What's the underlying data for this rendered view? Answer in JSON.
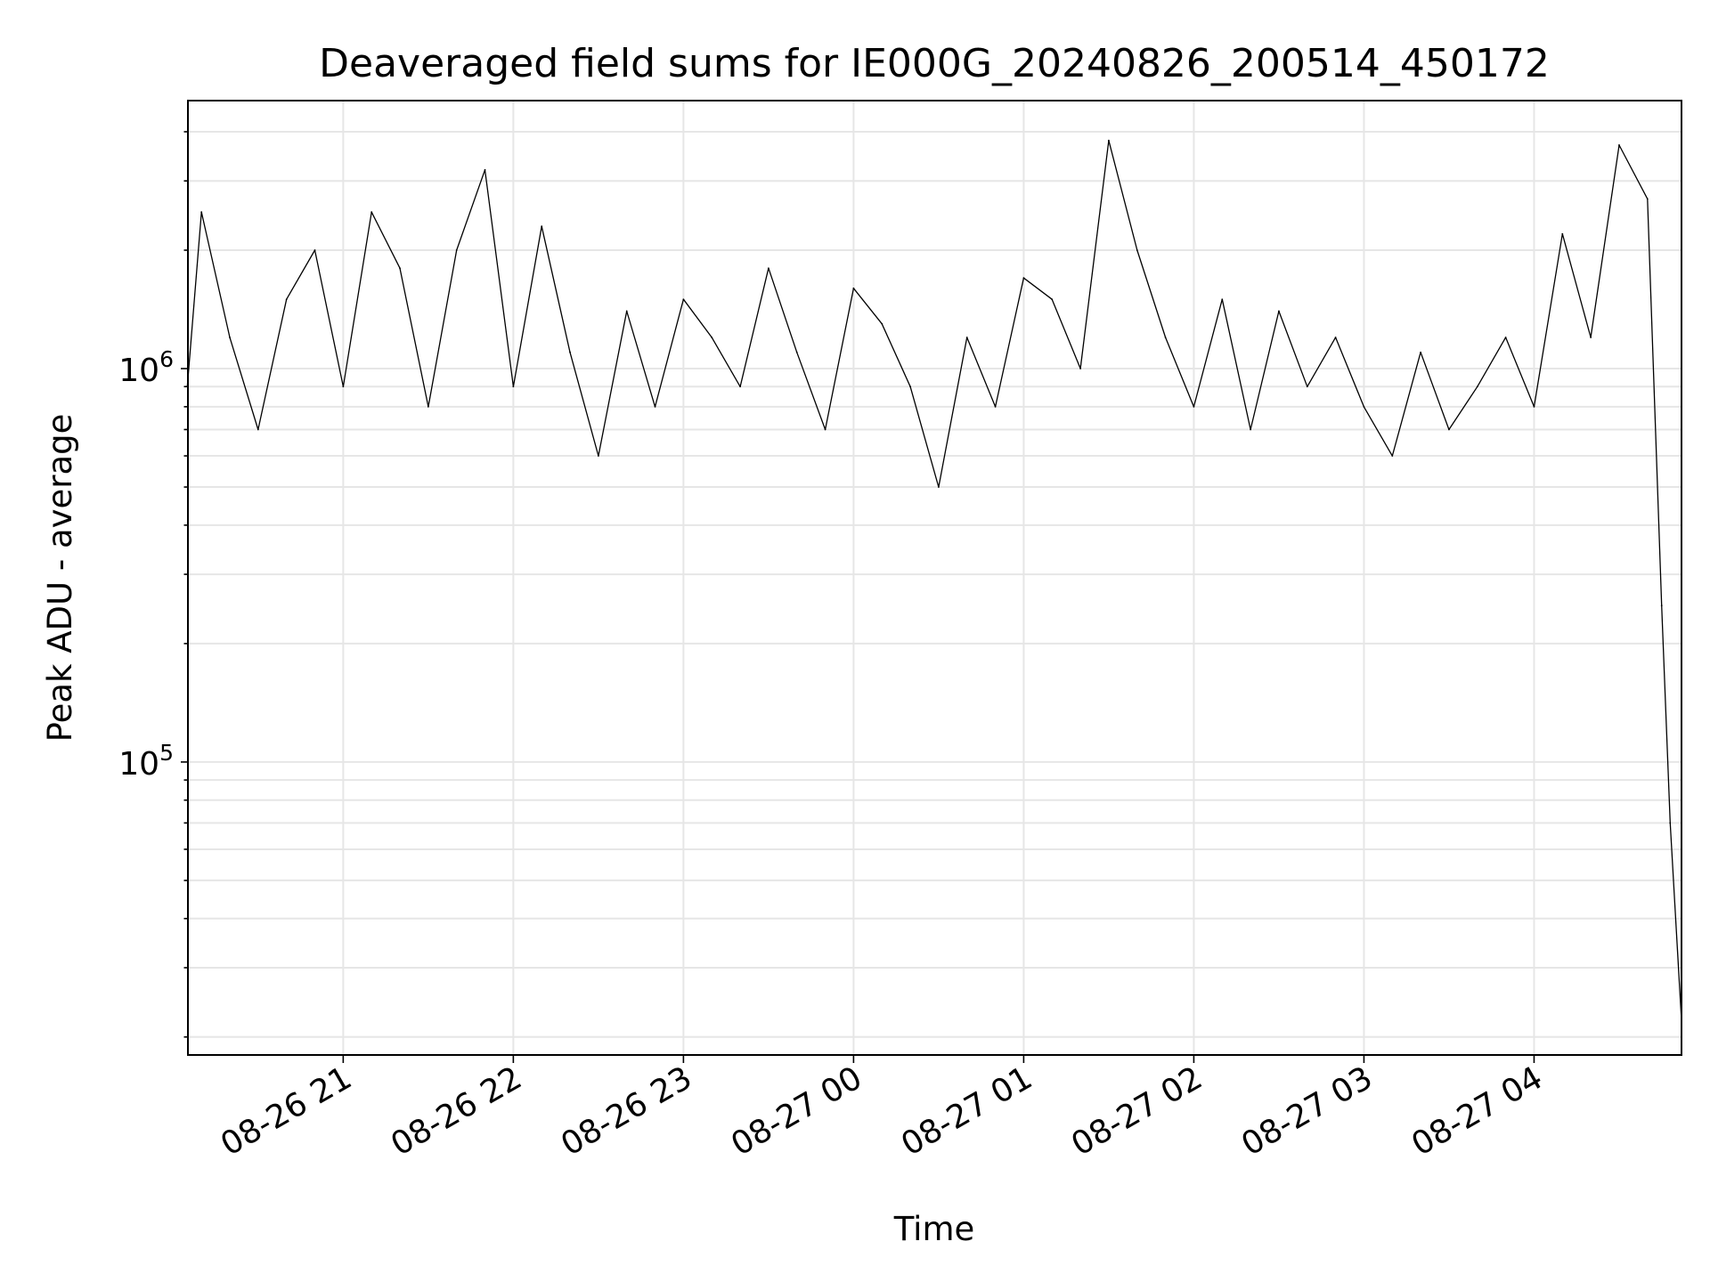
{
  "chart_data": {
    "type": "line",
    "title": "Deaveraged field sums for IE000G_20240826_200514_450172",
    "xlabel": "Time",
    "ylabel": "Peak ADU - average",
    "yscale": "log",
    "ylim": [
      18000,
      4800000
    ],
    "xlim": [
      "2024-08-26 20:05:14",
      "2024-08-27 04:52:00"
    ],
    "x_ticks": [
      "2024-08-26 21:00",
      "2024-08-26 22:00",
      "2024-08-26 23:00",
      "2024-08-27 00:00",
      "2024-08-27 01:00",
      "2024-08-27 02:00",
      "2024-08-27 03:00",
      "2024-08-27 04:00"
    ],
    "x_tick_labels": [
      "08-26 21",
      "08-26 22",
      "08-26 23",
      "08-27 00",
      "08-27 01",
      "08-27 02",
      "08-27 03",
      "08-27 04"
    ],
    "y_ticks": [
      100000,
      1000000
    ],
    "y_tick_labels": [
      {
        "base": "10",
        "exp": "5"
      },
      {
        "base": "10",
        "exp": "6"
      }
    ],
    "grid": true,
    "series": [
      {
        "color": "#000000",
        "x": [
          "2024-08-26 20:05",
          "2024-08-26 20:10",
          "2024-08-26 20:20",
          "2024-08-26 20:30",
          "2024-08-26 20:40",
          "2024-08-26 20:50",
          "2024-08-26 21:00",
          "2024-08-26 21:10",
          "2024-08-26 21:20",
          "2024-08-26 21:30",
          "2024-08-26 21:40",
          "2024-08-26 21:50",
          "2024-08-26 22:00",
          "2024-08-26 22:10",
          "2024-08-26 22:20",
          "2024-08-26 22:30",
          "2024-08-26 22:40",
          "2024-08-26 22:50",
          "2024-08-26 23:00",
          "2024-08-26 23:10",
          "2024-08-26 23:20",
          "2024-08-26 23:30",
          "2024-08-26 23:40",
          "2024-08-26 23:50",
          "2024-08-27 00:00",
          "2024-08-27 00:10",
          "2024-08-27 00:20",
          "2024-08-27 00:30",
          "2024-08-27 00:40",
          "2024-08-27 00:50",
          "2024-08-27 01:00",
          "2024-08-27 01:10",
          "2024-08-27 01:20",
          "2024-08-27 01:30",
          "2024-08-27 01:40",
          "2024-08-27 01:50",
          "2024-08-27 02:00",
          "2024-08-27 02:10",
          "2024-08-27 02:20",
          "2024-08-27 02:30",
          "2024-08-27 02:40",
          "2024-08-27 02:50",
          "2024-08-27 03:00",
          "2024-08-27 03:10",
          "2024-08-27 03:20",
          "2024-08-27 03:30",
          "2024-08-27 03:40",
          "2024-08-27 03:50",
          "2024-08-27 04:00",
          "2024-08-27 04:10",
          "2024-08-27 04:20",
          "2024-08-27 04:30",
          "2024-08-27 04:40",
          "2024-08-27 04:45",
          "2024-08-27 04:48",
          "2024-08-27 04:52"
        ],
        "y": [
          900000,
          2500000,
          1200000,
          700000,
          1500000,
          2000000,
          900000,
          2500000,
          1800000,
          800000,
          2000000,
          3200000,
          900000,
          2300000,
          1100000,
          600000,
          1400000,
          800000,
          1500000,
          1200000,
          900000,
          1800000,
          1100000,
          700000,
          1600000,
          1300000,
          900000,
          500000,
          1200000,
          800000,
          1700000,
          1500000,
          1000000,
          3800000,
          2000000,
          1200000,
          800000,
          1500000,
          700000,
          1400000,
          900000,
          1200000,
          800000,
          600000,
          1100000,
          700000,
          900000,
          1200000,
          800000,
          2200000,
          1200000,
          3700000,
          2700000,
          250000,
          70000,
          22000
        ]
      }
    ]
  }
}
